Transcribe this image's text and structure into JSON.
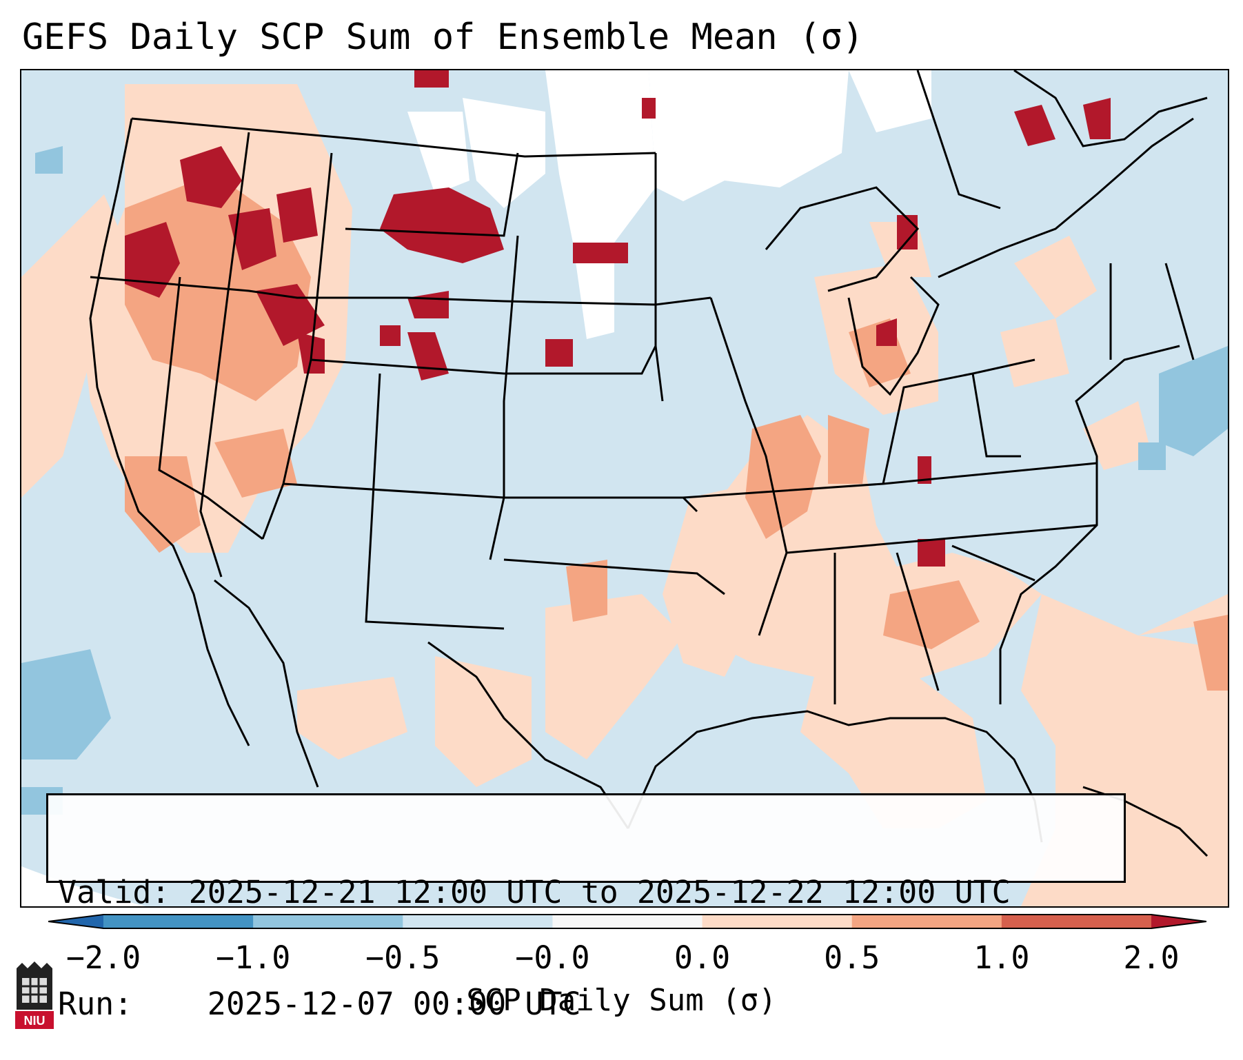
{
  "title": "GEFS Daily SCP Sum of Ensemble Mean (σ)",
  "info": {
    "valid_label": "Valid:",
    "valid_value": "2025-12-21 12:00 UTC to 2025-12-22 12:00 UTC",
    "run_label": "Run:",
    "run_value": "2025-12-07 00:00 UTC"
  },
  "colorbar": {
    "label": "SCP Daily Sum (σ)",
    "ticks": [
      "−2.0",
      "−1.0",
      "−0.5",
      "−0.0",
      "0.0",
      "0.5",
      "1.0",
      "2.0"
    ],
    "bins": [
      {
        "from": "−2.0",
        "to": "−1.0",
        "color": "#4393c3"
      },
      {
        "from": "−1.0",
        "to": "−0.5",
        "color": "#92c5de"
      },
      {
        "from": "−0.5",
        "to": "−0.0",
        "color": "#d1e5f0"
      },
      {
        "from": "−0.0",
        "to": "0.0",
        "color": "#f7f7f7"
      },
      {
        "from": "0.0",
        "to": "0.5",
        "color": "#fddbc7"
      },
      {
        "from": "0.5",
        "to": "1.0",
        "color": "#f4a582"
      },
      {
        "from": "1.0",
        "to": "2.0",
        "color": "#d6604d"
      }
    ],
    "under_color": "#2166ac",
    "over_color": "#b2182b"
  },
  "map": {
    "region": "CONUS",
    "background_color": "#d1e5f0",
    "border_color": "#000000"
  },
  "logo": {
    "text": "NIU",
    "icon": "niu-castle-logo-icon"
  }
}
